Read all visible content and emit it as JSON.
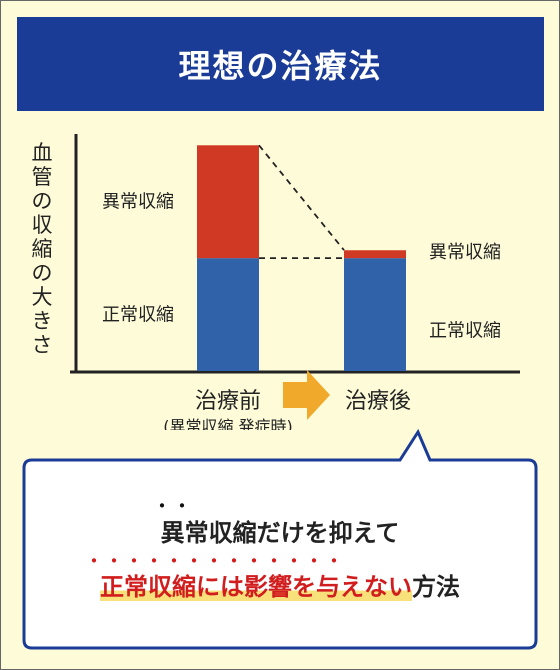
{
  "title": "理想の治療法",
  "chart_data": {
    "type": "bar",
    "stacked": true,
    "ylabel": "血管の収縮の大きさ",
    "categories": [
      "治療前",
      "治療後"
    ],
    "category_sublabels": [
      "(異常収縮 発症時)",
      ""
    ],
    "series": [
      {
        "name": "正常収縮",
        "values": [
          100,
          100
        ],
        "color": "#2f62a8"
      },
      {
        "name": "異常収縮",
        "values": [
          100,
          7
        ],
        "color": "#d03a24"
      }
    ],
    "ylim": [
      0,
      210
    ],
    "grid": false,
    "annotations": {
      "arrow_color": "#f0a92b",
      "dashed_lines": true
    }
  },
  "callout": {
    "line1": "異常収縮だけを抑えて",
    "line2_highlight": "正常収縮には影響を与えない",
    "line2_rest": "方法",
    "line1_dots": "・・",
    "line2_dots": "・・・・・・・・・・・・・"
  }
}
